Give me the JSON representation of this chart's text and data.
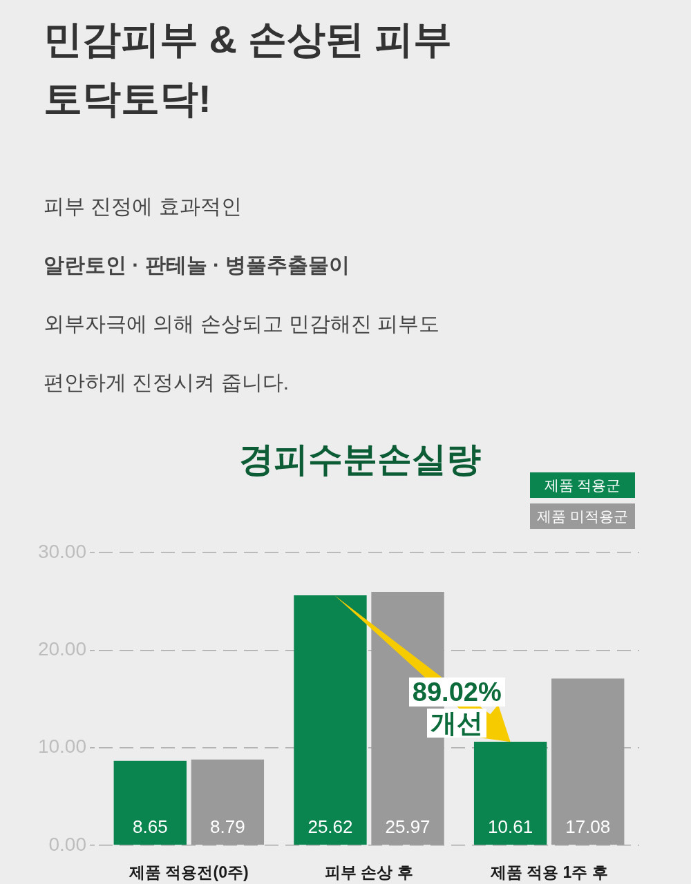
{
  "chart_data": {
    "type": "bar",
    "title": "경피수분손실량",
    "categories": [
      "제품 적용전(0주)",
      "피부 손상 후",
      "제품 적용 1주 후"
    ],
    "series": [
      {
        "name": "제품 적용군",
        "color": "#0a8550",
        "values": [
          8.65,
          25.62,
          10.61
        ]
      },
      {
        "name": "제품 미적용군",
        "color": "#9a9a9a",
        "values": [
          8.79,
          25.97,
          17.08
        ]
      }
    ],
    "ylim": [
      0,
      30
    ],
    "yticks": [
      {
        "value": 0,
        "label": "0.00"
      },
      {
        "value": 10,
        "label": "10.00"
      },
      {
        "value": 20,
        "label": "20.00"
      },
      {
        "value": 30,
        "label": "30.00"
      }
    ],
    "grid": "y",
    "legend": "top right",
    "data_labels": true,
    "annotations": [
      "민감피부 & 손상된 피부",
      "토닥토닥!",
      "피부 진정에 효과적인",
      "알란토인 · 판테놀 · 병풀추출물이",
      "외부자극에 의해 손상되고 민감해진 피부도",
      "편안하게 진정시켜 줍니다.",
      "89.02% 개선"
    ]
  }
}
